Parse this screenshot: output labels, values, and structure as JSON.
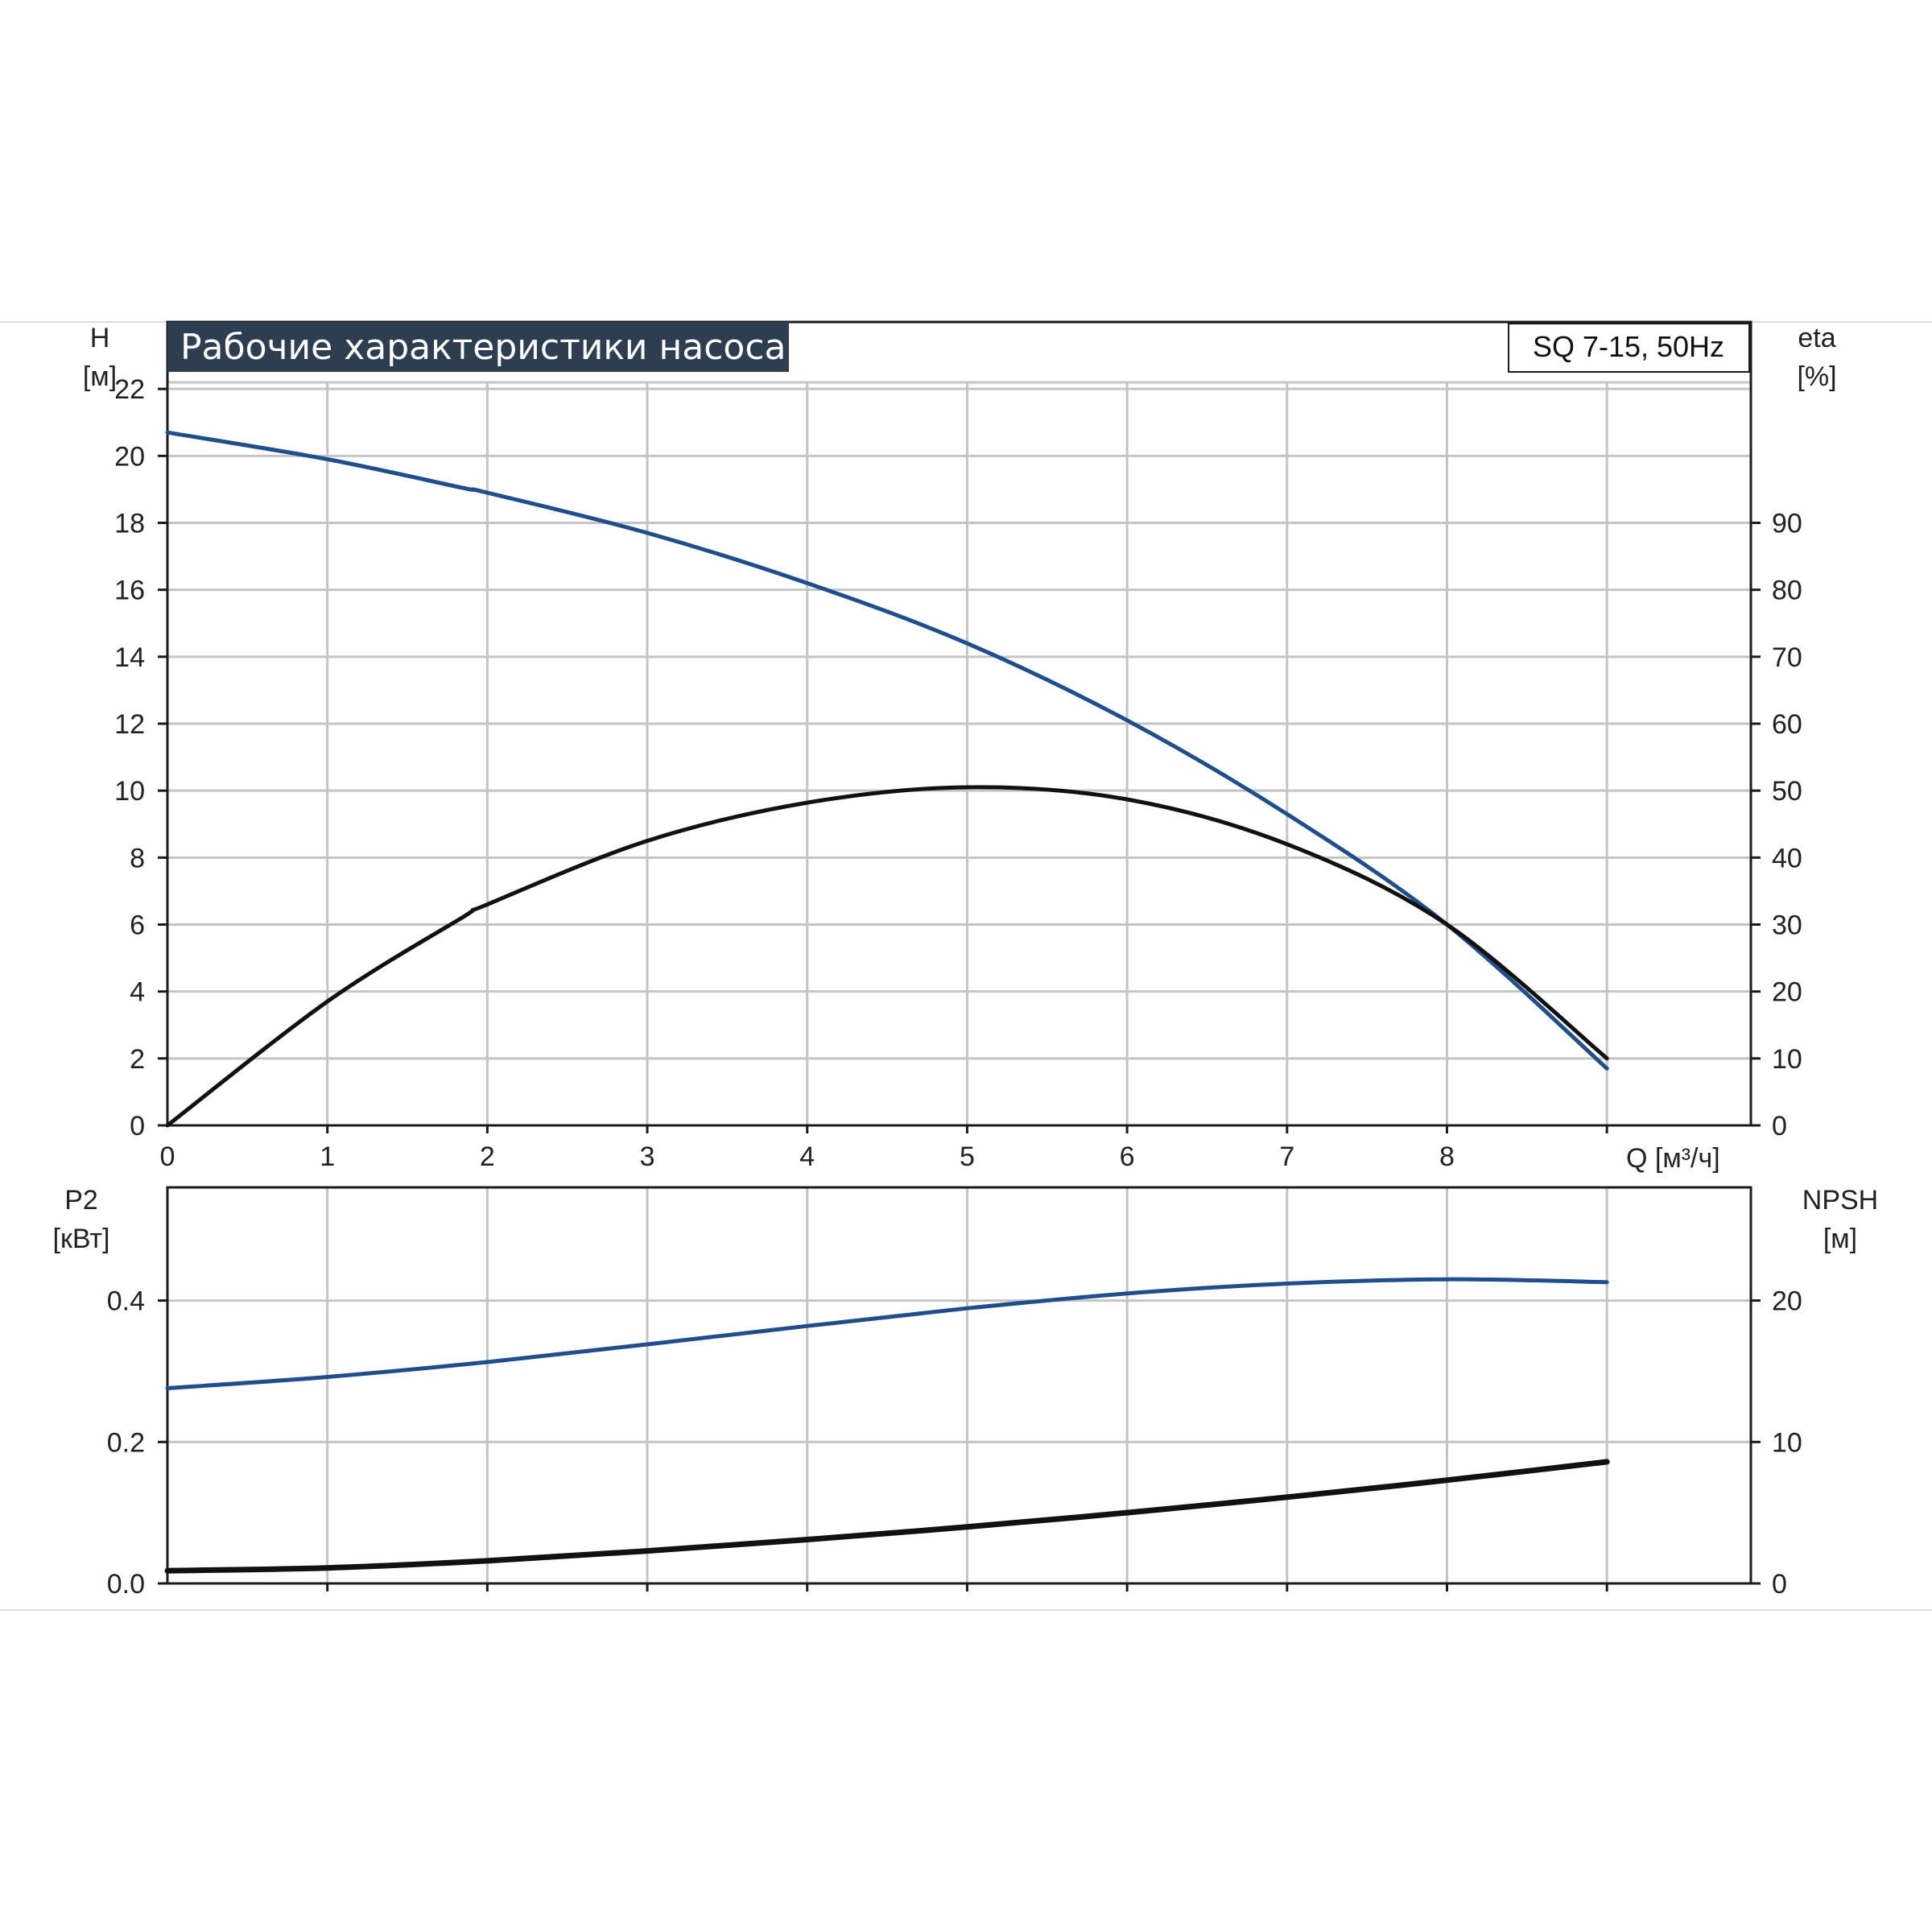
{
  "title": "Рабочие характеристики насоса",
  "model": "SQ 7-15, 50Hz",
  "colors": {
    "title_bg": "#2c3e50",
    "blue": "#1f4e8c",
    "black": "#111111",
    "grid": "#c4c4c4"
  },
  "chart_data": [
    {
      "type": "line",
      "x_label": "Q [м³/ч]",
      "x_ticks": [
        "0",
        "1",
        "2",
        "3",
        "4",
        "5",
        "6",
        "7",
        "8"
      ],
      "xlim": [
        0,
        9.9
      ],
      "left_axis": {
        "label_line1": "H",
        "label_line2": "[м]",
        "ticks": [
          "0",
          "2",
          "4",
          "6",
          "8",
          "10",
          "12",
          "14",
          "16",
          "18",
          "20",
          "22"
        ],
        "lim": [
          0,
          24
        ]
      },
      "right_axis": {
        "label_line1": "eta",
        "label_line2": "[%]",
        "ticks": [
          "0",
          "10",
          "20",
          "30",
          "40",
          "50",
          "60",
          "70",
          "80",
          "90"
        ],
        "lim": [
          0,
          120
        ]
      },
      "grid": true,
      "series": [
        {
          "axis": "left",
          "color": "#1f4e8c",
          "x": [
            0,
            1,
            1.84,
            2,
            3,
            4,
            5,
            6,
            7,
            8,
            9
          ],
          "y": [
            20.7,
            19.9,
            19.05,
            18.9,
            17.7,
            16.2,
            14.4,
            12.1,
            9.3,
            6.0,
            1.7
          ]
        },
        {
          "axis": "right",
          "color": "#111111",
          "x": [
            0,
            1,
            1.84,
            2,
            3,
            4,
            5,
            6,
            7,
            8,
            9
          ],
          "y": [
            0,
            18.5,
            31,
            33,
            42.5,
            48.2,
            50.5,
            48.7,
            42,
            30,
            10
          ]
        }
      ]
    },
    {
      "type": "line",
      "x_ticks": [],
      "xlim": [
        0,
        9.9
      ],
      "left_axis": {
        "label_line1": "P2",
        "label_line2": "[кВт]",
        "ticks": [
          "0.0",
          "0.2",
          "0.4"
        ],
        "lim": [
          0,
          0.56
        ]
      },
      "right_axis": {
        "label_line1": "NPSH",
        "label_line2": "[м]",
        "ticks": [
          "0",
          "10",
          "20"
        ],
        "lim": [
          0,
          28
        ]
      },
      "grid": true,
      "series": [
        {
          "axis": "left",
          "color": "#1f4e8c",
          "x": [
            0,
            1,
            2,
            3,
            4,
            5,
            6,
            7,
            8,
            9
          ],
          "y": [
            0.276,
            0.292,
            0.313,
            0.338,
            0.364,
            0.389,
            0.41,
            0.424,
            0.43,
            0.426
          ]
        },
        {
          "axis": "right",
          "color": "#111111",
          "x": [
            0,
            1,
            2,
            3,
            4,
            5,
            6,
            7,
            8,
            9
          ],
          "y": [
            0.9,
            1.1,
            1.6,
            2.3,
            3.1,
            4.0,
            5.0,
            6.1,
            7.3,
            8.6
          ]
        }
      ]
    }
  ]
}
